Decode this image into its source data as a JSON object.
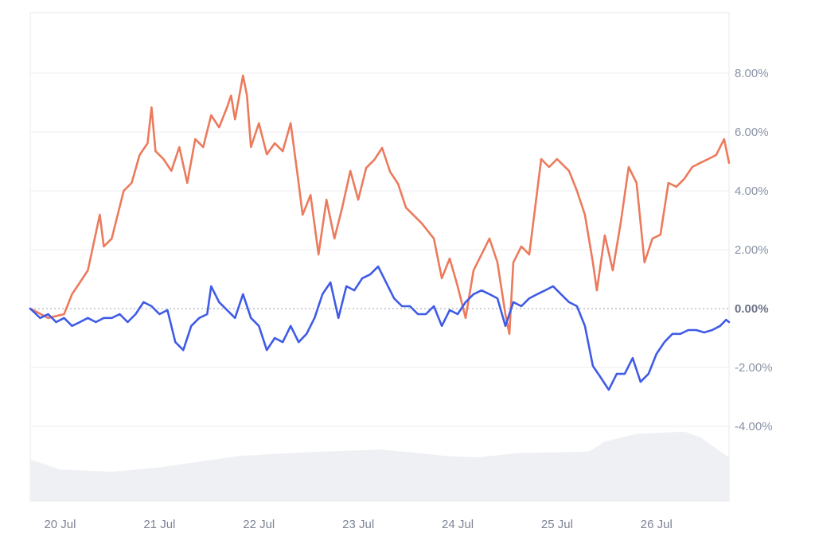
{
  "chart_data": {
    "type": "line",
    "title": "",
    "xlabel": "",
    "ylabel": "",
    "x_unit": "days since 20 Jul",
    "xlim": [
      -0.3,
      6.73
    ],
    "ylim": [
      -4,
      8
    ],
    "grid": true,
    "legend": "none",
    "x_ticks": [
      {
        "value": 0,
        "label": "20 Jul"
      },
      {
        "value": 1,
        "label": "21 Jul"
      },
      {
        "value": 2,
        "label": "22 Jul"
      },
      {
        "value": 3,
        "label": "23 Jul"
      },
      {
        "value": 4,
        "label": "24 Jul"
      },
      {
        "value": 5,
        "label": "25 Jul"
      },
      {
        "value": 6,
        "label": "26 Jul"
      }
    ],
    "y_ticks": [
      {
        "value": 8,
        "label": "8.00%"
      },
      {
        "value": 6,
        "label": "6.00%"
      },
      {
        "value": 4,
        "label": "4.00%"
      },
      {
        "value": 2,
        "label": "2.00%"
      },
      {
        "value": 0,
        "label": "0.00%"
      },
      {
        "value": -2,
        "label": "-2.00%"
      },
      {
        "value": -4,
        "label": "-4.00%"
      }
    ],
    "series": [
      {
        "name": "orange-series",
        "color": "#ec7a5c",
        "points": [
          [
            -0.3,
            0
          ],
          [
            -0.12,
            -0.32
          ],
          [
            0.04,
            -0.19
          ],
          [
            0.12,
            0.49
          ],
          [
            0.2,
            0.89
          ],
          [
            0.28,
            1.3
          ],
          [
            0.4,
            3.19
          ],
          [
            0.44,
            2.11
          ],
          [
            0.52,
            2.38
          ],
          [
            0.64,
            4.0
          ],
          [
            0.72,
            4.27
          ],
          [
            0.8,
            5.22
          ],
          [
            0.88,
            5.62
          ],
          [
            0.92,
            6.84
          ],
          [
            0.96,
            5.35
          ],
          [
            1.04,
            5.08
          ],
          [
            1.12,
            4.68
          ],
          [
            1.2,
            5.49
          ],
          [
            1.28,
            4.27
          ],
          [
            1.36,
            5.76
          ],
          [
            1.44,
            5.49
          ],
          [
            1.52,
            6.57
          ],
          [
            1.6,
            6.16
          ],
          [
            1.68,
            6.84
          ],
          [
            1.72,
            7.24
          ],
          [
            1.76,
            6.43
          ],
          [
            1.84,
            7.92
          ],
          [
            1.88,
            7.24
          ],
          [
            1.92,
            5.49
          ],
          [
            2.0,
            6.3
          ],
          [
            2.08,
            5.24
          ],
          [
            2.16,
            5.62
          ],
          [
            2.24,
            5.35
          ],
          [
            2.32,
            6.3
          ],
          [
            2.4,
            4.27
          ],
          [
            2.44,
            3.19
          ],
          [
            2.52,
            3.86
          ],
          [
            2.6,
            1.84
          ],
          [
            2.68,
            3.7
          ],
          [
            2.76,
            2.38
          ],
          [
            2.84,
            3.46
          ],
          [
            2.92,
            4.68
          ],
          [
            3.0,
            3.7
          ],
          [
            3.08,
            4.78
          ],
          [
            3.16,
            5.05
          ],
          [
            3.24,
            5.46
          ],
          [
            3.32,
            4.65
          ],
          [
            3.4,
            4.24
          ],
          [
            3.48,
            3.43
          ],
          [
            3.56,
            3.16
          ],
          [
            3.64,
            2.89
          ],
          [
            3.76,
            2.38
          ],
          [
            3.84,
            1.03
          ],
          [
            3.92,
            1.7
          ],
          [
            4.0,
            0.76
          ],
          [
            4.08,
            -0.32
          ],
          [
            4.16,
            1.3
          ],
          [
            4.24,
            1.84
          ],
          [
            4.32,
            2.38
          ],
          [
            4.4,
            1.57
          ],
          [
            4.48,
            -0.19
          ],
          [
            4.52,
            -0.86
          ],
          [
            4.56,
            1.57
          ],
          [
            4.64,
            2.11
          ],
          [
            4.72,
            1.84
          ],
          [
            4.84,
            5.08
          ],
          [
            4.92,
            4.81
          ],
          [
            5.0,
            5.08
          ],
          [
            5.12,
            4.68
          ],
          [
            5.2,
            4.0
          ],
          [
            5.28,
            3.19
          ],
          [
            5.36,
            1.57
          ],
          [
            5.4,
            0.62
          ],
          [
            5.48,
            2.49
          ],
          [
            5.56,
            1.3
          ],
          [
            5.64,
            2.92
          ],
          [
            5.72,
            4.81
          ],
          [
            5.8,
            4.27
          ],
          [
            5.88,
            1.57
          ],
          [
            5.96,
            2.38
          ],
          [
            6.04,
            2.51
          ],
          [
            6.12,
            4.27
          ],
          [
            6.2,
            4.14
          ],
          [
            6.28,
            4.41
          ],
          [
            6.36,
            4.81
          ],
          [
            6.44,
            4.95
          ],
          [
            6.52,
            5.08
          ],
          [
            6.6,
            5.22
          ],
          [
            6.68,
            5.76
          ],
          [
            6.73,
            4.95
          ]
        ]
      },
      {
        "name": "blue-series",
        "color": "#3f5be6",
        "points": [
          [
            -0.3,
            0
          ],
          [
            -0.2,
            -0.32
          ],
          [
            -0.12,
            -0.19
          ],
          [
            -0.04,
            -0.46
          ],
          [
            0.04,
            -0.32
          ],
          [
            0.12,
            -0.59
          ],
          [
            0.2,
            -0.46
          ],
          [
            0.28,
            -0.32
          ],
          [
            0.36,
            -0.46
          ],
          [
            0.44,
            -0.32
          ],
          [
            0.52,
            -0.32
          ],
          [
            0.6,
            -0.19
          ],
          [
            0.68,
            -0.46
          ],
          [
            0.76,
            -0.19
          ],
          [
            0.84,
            0.22
          ],
          [
            0.92,
            0.08
          ],
          [
            1.0,
            -0.19
          ],
          [
            1.08,
            -0.05
          ],
          [
            1.16,
            -1.14
          ],
          [
            1.24,
            -1.41
          ],
          [
            1.32,
            -0.59
          ],
          [
            1.4,
            -0.32
          ],
          [
            1.48,
            -0.19
          ],
          [
            1.52,
            0.76
          ],
          [
            1.6,
            0.22
          ],
          [
            1.68,
            -0.05
          ],
          [
            1.76,
            -0.32
          ],
          [
            1.84,
            0.49
          ],
          [
            1.92,
            -0.32
          ],
          [
            2.0,
            -0.59
          ],
          [
            2.08,
            -1.41
          ],
          [
            2.16,
            -1.0
          ],
          [
            2.24,
            -1.14
          ],
          [
            2.32,
            -0.59
          ],
          [
            2.4,
            -1.14
          ],
          [
            2.48,
            -0.86
          ],
          [
            2.56,
            -0.32
          ],
          [
            2.64,
            0.49
          ],
          [
            2.72,
            0.89
          ],
          [
            2.8,
            -0.32
          ],
          [
            2.88,
            0.76
          ],
          [
            2.96,
            0.62
          ],
          [
            3.04,
            1.03
          ],
          [
            3.12,
            1.16
          ],
          [
            3.2,
            1.43
          ],
          [
            3.28,
            0.89
          ],
          [
            3.36,
            0.35
          ],
          [
            3.44,
            0.08
          ],
          [
            3.52,
            0.08
          ],
          [
            3.6,
            -0.19
          ],
          [
            3.68,
            -0.19
          ],
          [
            3.76,
            0.08
          ],
          [
            3.84,
            -0.59
          ],
          [
            3.92,
            -0.05
          ],
          [
            4.0,
            -0.19
          ],
          [
            4.08,
            0.22
          ],
          [
            4.16,
            0.49
          ],
          [
            4.24,
            0.62
          ],
          [
            4.32,
            0.49
          ],
          [
            4.4,
            0.35
          ],
          [
            4.48,
            -0.59
          ],
          [
            4.56,
            0.22
          ],
          [
            4.64,
            0.08
          ],
          [
            4.72,
            0.35
          ],
          [
            4.8,
            0.49
          ],
          [
            4.88,
            0.62
          ],
          [
            4.96,
            0.76
          ],
          [
            5.04,
            0.49
          ],
          [
            5.12,
            0.22
          ],
          [
            5.2,
            0.08
          ],
          [
            5.28,
            -0.59
          ],
          [
            5.36,
            -1.95
          ],
          [
            5.44,
            -2.35
          ],
          [
            5.52,
            -2.76
          ],
          [
            5.6,
            -2.22
          ],
          [
            5.68,
            -2.22
          ],
          [
            5.76,
            -1.68
          ],
          [
            5.84,
            -2.49
          ],
          [
            5.92,
            -2.22
          ],
          [
            6.0,
            -1.54
          ],
          [
            6.08,
            -1.14
          ],
          [
            6.16,
            -0.86
          ],
          [
            6.24,
            -0.86
          ],
          [
            6.32,
            -0.73
          ],
          [
            6.4,
            -0.73
          ],
          [
            6.48,
            -0.81
          ],
          [
            6.56,
            -0.73
          ],
          [
            6.64,
            -0.59
          ],
          [
            6.7,
            -0.38
          ],
          [
            6.73,
            -0.46
          ]
        ]
      }
    ],
    "volume": {
      "color": "#eef0f3",
      "relative": true,
      "points": [
        [
          -0.3,
          0.58
        ],
        [
          0.0,
          0.44
        ],
        [
          0.52,
          0.41
        ],
        [
          1.0,
          0.47
        ],
        [
          1.8,
          0.63
        ],
        [
          2.6,
          0.69
        ],
        [
          3.24,
          0.72
        ],
        [
          3.88,
          0.63
        ],
        [
          4.2,
          0.61
        ],
        [
          4.6,
          0.67
        ],
        [
          5.32,
          0.69
        ],
        [
          5.48,
          0.83
        ],
        [
          5.8,
          0.94
        ],
        [
          6.28,
          0.97
        ],
        [
          6.44,
          0.89
        ],
        [
          6.73,
          0.61
        ]
      ]
    }
  }
}
